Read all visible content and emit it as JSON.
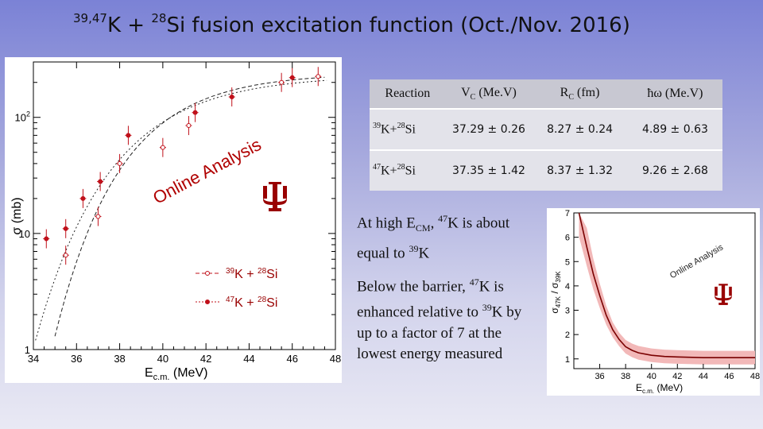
{
  "title": {
    "sup1": "39,47",
    "el1": "K",
    "plus": " + ",
    "sup2": "28",
    "el2": "Si",
    "rest": " fusion excitation function (Oct./Nov. 2016)"
  },
  "table": {
    "headers": [
      "Reaction",
      "V",
      "C",
      " (Me.V)",
      "R",
      "C",
      " (fm)",
      "ħω (Me.V)"
    ],
    "rows": [
      {
        "sup": "39",
        "a": "K+",
        "sup2": "28",
        "b": "Si",
        "vc": "37.29 ± 0.26",
        "rc": "8.27 ± 0.24",
        "hw": "4.89 ± 0.63"
      },
      {
        "sup": "47",
        "a": "K+",
        "sup2": "28",
        "b": "Si",
        "vc": "37.35 ± 1.42",
        "rc": "8.37 ± 1.32",
        "hw": "9.26 ± 2.68"
      }
    ]
  },
  "notes": {
    "high": {
      "t1": "At high E",
      "sub": "CM",
      "t2": ", ",
      "sup": "47",
      "t3": "K is about equal to ",
      "sup2": "39",
      "t4": "K"
    },
    "below": {
      "t1": "Below the barrier, ",
      "sup": "47",
      "t2": "K is enhanced relative to ",
      "sup2": "39",
      "t3": "K by up to a factor of 7 at the lowest energy measured"
    }
  },
  "colors": {
    "accent": "#990000",
    "band": "#f2b8b8",
    "line": "#c0101a"
  },
  "chart_data": [
    {
      "type": "scatter",
      "title": "",
      "scale": "log-y",
      "xlabel": "E",
      "xlabel_sub": "c.m.",
      "xlabel_unit": " (MeV)",
      "ylabel": "σ (mb)",
      "xlim": [
        34,
        48
      ],
      "ylim": [
        1,
        300
      ],
      "x_ticks": [
        34,
        36,
        38,
        40,
        42,
        44,
        46,
        48
      ],
      "y_tick_labels": [
        {
          "value": 1,
          "label": "1"
        },
        {
          "value": 10,
          "label": "10"
        },
        {
          "value": 100,
          "label": "10",
          "sup": "2"
        }
      ],
      "watermark": "Online Analysis",
      "logo": "trident",
      "series": [
        {
          "name_sup1": "39",
          "name_el1": "K + ",
          "name_sup2": "28",
          "name_el2": "Si",
          "marker": "open",
          "points": [
            [
              35.5,
              6.5
            ],
            [
              37.0,
              14
            ],
            [
              38.0,
              40
            ],
            [
              40.0,
              55
            ],
            [
              41.2,
              85
            ],
            [
              45.5,
              200
            ],
            [
              47.2,
              225
            ]
          ]
        },
        {
          "name_sup1": "47",
          "name_el1": "K + ",
          "name_sup2": "28",
          "name_el2": "Si",
          "marker": "filled",
          "points": [
            [
              34.6,
              9
            ],
            [
              35.5,
              11
            ],
            [
              36.3,
              20
            ],
            [
              37.1,
              28
            ],
            [
              38.4,
              70
            ],
            [
              41.5,
              110
            ],
            [
              43.2,
              150
            ],
            [
              46.0,
              220
            ]
          ]
        }
      ]
    },
    {
      "type": "line",
      "title": "",
      "xlabel": "E",
      "xlabel_sub": "c.m.",
      "xlabel_unit": " (MeV)",
      "ylabel": "σ",
      "ylabel_sub1": "47K",
      "ylabel_mid": " / σ",
      "ylabel_sub2": "39K",
      "xlim": [
        34,
        48
      ],
      "ylim": [
        0.6,
        7
      ],
      "x_ticks": [
        36,
        38,
        40,
        42,
        44,
        46,
        48
      ],
      "y_ticks": [
        1,
        2,
        3,
        4,
        5,
        6,
        7
      ],
      "watermark": "Online Analysis",
      "logo": "trident",
      "series": [
        {
          "points": [
            [
              34.4,
              7.0
            ],
            [
              35.0,
              5.6
            ],
            [
              35.5,
              4.5
            ],
            [
              36.0,
              3.6
            ],
            [
              36.5,
              2.8
            ],
            [
              37.0,
              2.2
            ],
            [
              37.5,
              1.8
            ],
            [
              38.0,
              1.5
            ],
            [
              38.5,
              1.35
            ],
            [
              39.0,
              1.25
            ],
            [
              40.0,
              1.15
            ],
            [
              41.0,
              1.1
            ],
            [
              42.0,
              1.08
            ],
            [
              44.0,
              1.05
            ],
            [
              48.0,
              1.05
            ]
          ],
          "band": 0.28
        }
      ]
    }
  ]
}
